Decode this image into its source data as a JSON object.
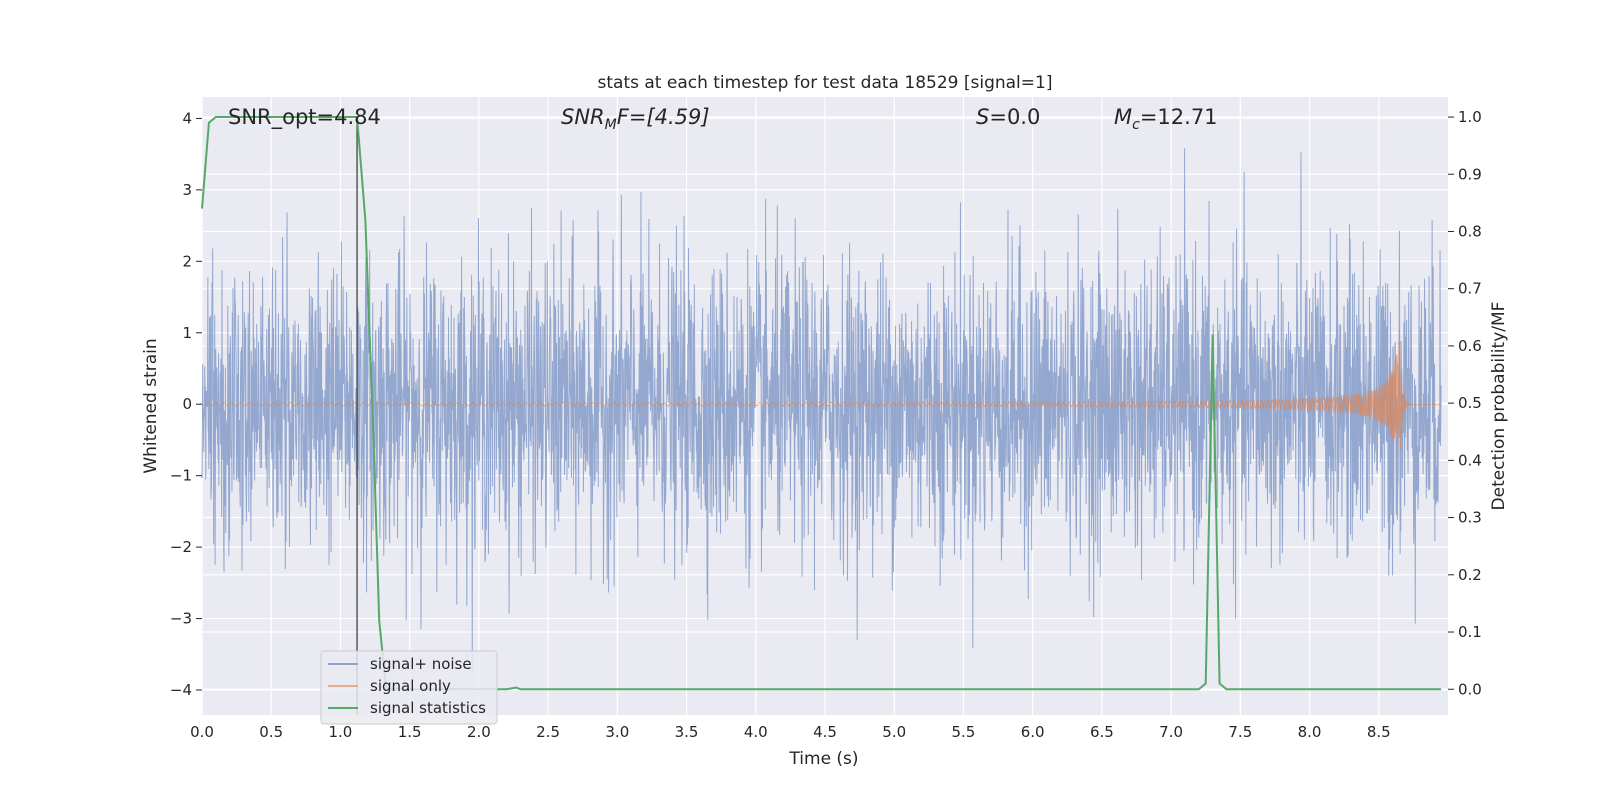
{
  "chart_data": {
    "type": "line",
    "title": "stats at each timestep for test data 18529 [signal=1]",
    "xlabel": "Time (s)",
    "ylabel_left": "Whitened strain",
    "ylabel_right": "Detection probability/MF",
    "xlim": [
      0.0,
      9.0
    ],
    "ylim_left": [
      -4.35,
      4.3
    ],
    "ylim_right": [
      -0.045,
      1.035
    ],
    "xticks": [
      "0.0",
      "0.5",
      "1.0",
      "1.5",
      "2.0",
      "2.5",
      "3.0",
      "3.5",
      "4.0",
      "4.5",
      "5.0",
      "5.5",
      "6.0",
      "6.5",
      "7.0",
      "7.5",
      "8.0",
      "8.5"
    ],
    "yticks_left": [
      "−4",
      "−3",
      "−2",
      "−1",
      "0",
      "1",
      "2",
      "3",
      "4"
    ],
    "yticks_right": [
      "0.0",
      "0.1",
      "0.2",
      "0.3",
      "0.4",
      "0.5",
      "0.6",
      "0.7",
      "0.8",
      "0.9",
      "1.0"
    ],
    "grid": true,
    "legend_placement": "lower-left",
    "annotations": {
      "snr_opt": "SNR_opt=4.84",
      "snr_mf_main": "SNR",
      "snr_mf_sub": "M",
      "snr_mf_rest": "F=[4.59]",
      "s_main": "S",
      "s_rest": "=0.0",
      "mc_main": "M",
      "mc_sub": "c",
      "mc_rest": "=12.71"
    },
    "vertical_marker_x": 1.12,
    "series": [
      {
        "name": "signal+ noise",
        "color": "#8ea3cc",
        "kind": "noise",
        "sigma": 1.0,
        "n_points": 3600
      },
      {
        "name": "signal only",
        "color": "#dd8452",
        "kind": "chirp",
        "t_merger": 8.65,
        "peak_amplitude": 1.05,
        "min_amplitude": -0.7
      },
      {
        "name": "signal statistics",
        "color": "#55a868",
        "kind": "probability",
        "points": [
          [
            0.0,
            0.84
          ],
          [
            0.05,
            0.99
          ],
          [
            0.1,
            1.0
          ],
          [
            0.2,
            1.0
          ],
          [
            0.5,
            1.0
          ],
          [
            0.8,
            1.0
          ],
          [
            1.0,
            1.0
          ],
          [
            1.12,
            1.0
          ],
          [
            1.18,
            0.82
          ],
          [
            1.24,
            0.43
          ],
          [
            1.28,
            0.12
          ],
          [
            1.33,
            0.0
          ],
          [
            2.2,
            0.0
          ],
          [
            2.27,
            0.003
          ],
          [
            2.3,
            0.0
          ],
          [
            7.2,
            0.0
          ],
          [
            7.25,
            0.01
          ],
          [
            7.3,
            0.62
          ],
          [
            7.35,
            0.01
          ],
          [
            7.4,
            0.0
          ],
          [
            8.95,
            0.0
          ]
        ]
      }
    ]
  }
}
